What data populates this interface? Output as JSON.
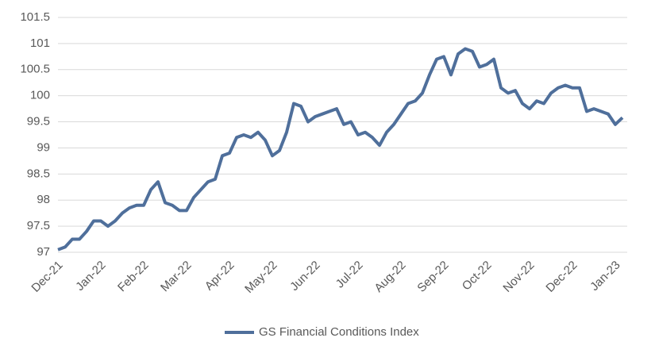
{
  "chart_data": {
    "type": "line",
    "categories": [
      "Dec-21",
      null,
      null,
      null,
      null,
      null,
      "Jan-22",
      null,
      null,
      null,
      null,
      null,
      "Feb-22",
      null,
      null,
      null,
      null,
      null,
      "Mar-22",
      null,
      null,
      null,
      null,
      null,
      "Apr-22",
      null,
      null,
      null,
      null,
      null,
      "May-22",
      null,
      null,
      null,
      null,
      null,
      "Jun-22",
      null,
      null,
      null,
      null,
      null,
      "Jul-22",
      null,
      null,
      null,
      null,
      null,
      "Aug-22",
      null,
      null,
      null,
      null,
      null,
      "Sep-22",
      null,
      null,
      null,
      null,
      null,
      "Oct-22",
      null,
      null,
      null,
      null,
      null,
      "Nov-22",
      null,
      null,
      null,
      null,
      null,
      "Dec-22",
      null,
      null,
      null,
      null,
      null,
      "Jan-23",
      null
    ],
    "series": [
      {
        "name": "GS Financial Conditions Index",
        "color": "#4f6f9b",
        "values": [
          97.05,
          97.1,
          97.25,
          97.25,
          97.4,
          97.6,
          97.6,
          97.5,
          97.6,
          97.75,
          97.85,
          97.9,
          97.9,
          98.2,
          98.35,
          97.95,
          97.9,
          97.8,
          97.8,
          98.05,
          98.2,
          98.35,
          98.4,
          98.85,
          98.9,
          99.2,
          99.25,
          99.2,
          99.3,
          99.15,
          98.85,
          98.95,
          99.3,
          99.85,
          99.8,
          99.5,
          99.6,
          99.65,
          99.7,
          99.75,
          99.45,
          99.5,
          99.25,
          99.3,
          99.2,
          99.05,
          99.3,
          99.45,
          99.65,
          99.85,
          99.9,
          100.05,
          100.4,
          100.7,
          100.75,
          100.4,
          100.8,
          100.9,
          100.85,
          100.55,
          100.6,
          100.7,
          100.15,
          100.05,
          100.1,
          99.85,
          99.75,
          99.9,
          99.85,
          100.05,
          100.15,
          100.2,
          100.15,
          100.15,
          99.7,
          99.75,
          99.7,
          99.65,
          99.45,
          99.58
        ]
      }
    ],
    "ylim": [
      97,
      101.5
    ],
    "yticks": [
      97,
      97.5,
      98,
      98.5,
      99,
      99.5,
      100,
      100.5,
      101,
      101.5
    ],
    "grid": true,
    "legend": "bottom"
  }
}
